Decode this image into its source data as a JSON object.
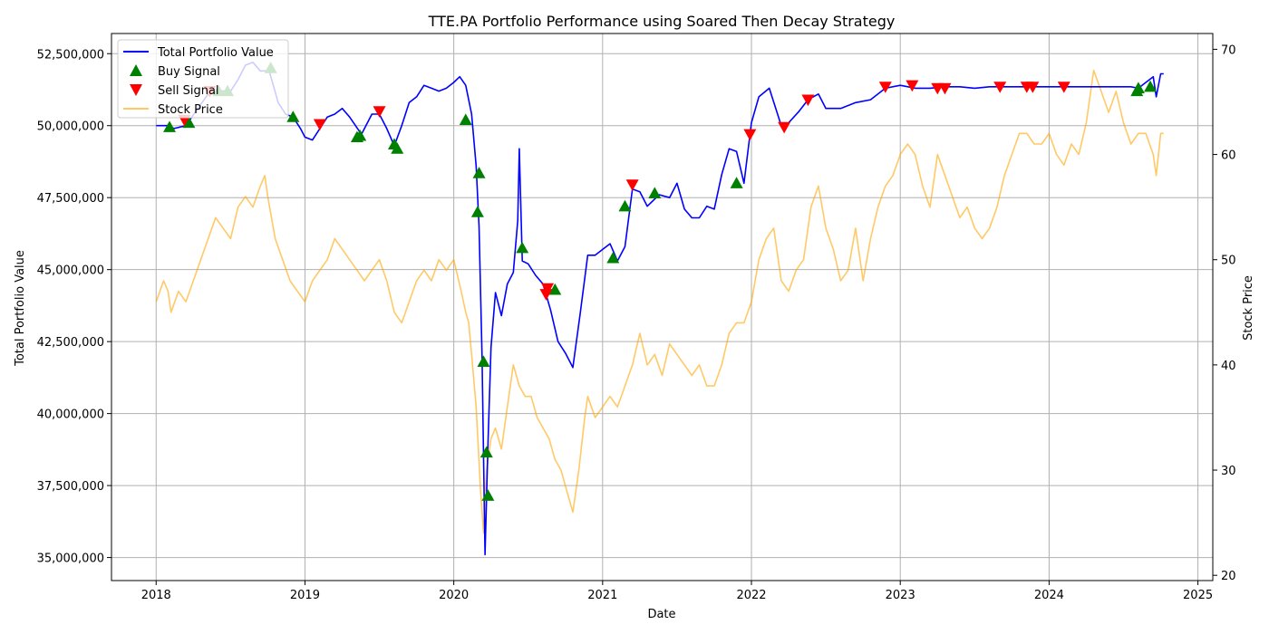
{
  "chart_data": {
    "type": "line",
    "title": "TTE.PA Portfolio Performance using Soared Then Decay Strategy",
    "xlabel": "Date",
    "ylabel": "Total Portfolio Value",
    "y2label": "Stock Price",
    "xlim": [
      2017.7,
      2025.1
    ],
    "ylim": [
      34200000,
      53200000
    ],
    "y2lim": [
      19.5,
      71.5
    ],
    "x_ticks": [
      2018,
      2019,
      2020,
      2021,
      2022,
      2023,
      2024,
      2025
    ],
    "x_tick_labels": [
      "2018",
      "2019",
      "2020",
      "2021",
      "2022",
      "2023",
      "2024",
      "2025"
    ],
    "y_ticks": [
      35000000,
      37500000,
      40000000,
      42500000,
      45000000,
      47500000,
      50000000,
      52500000
    ],
    "y_tick_labels": [
      "35,000,000",
      "37,500,000",
      "40,000,000",
      "42,500,000",
      "45,000,000",
      "47,500,000",
      "50,000,000",
      "52,500,000"
    ],
    "y2_ticks": [
      20,
      30,
      40,
      50,
      60,
      70
    ],
    "y2_tick_labels": [
      "20",
      "30",
      "40",
      "50",
      "60",
      "70"
    ],
    "grid": true,
    "legend_position": "top-left",
    "legend": [
      {
        "label": "Total Portfolio Value",
        "kind": "line",
        "color": "#0000ff"
      },
      {
        "label": "Buy Signal",
        "kind": "triangle-up",
        "color": "#008000"
      },
      {
        "label": "Sell Signal",
        "kind": "triangle-down",
        "color": "#ff0000"
      },
      {
        "label": "Stock Price",
        "kind": "line",
        "color": "#ffa500"
      }
    ],
    "series": [
      {
        "name": "Total Portfolio Value",
        "axis": "left",
        "color": "#0000ff",
        "x": [
          2018.0,
          2018.08,
          2018.12,
          2018.2,
          2018.28,
          2018.35,
          2018.42,
          2018.5,
          2018.55,
          2018.6,
          2018.65,
          2018.7,
          2018.76,
          2018.82,
          2018.87,
          2018.92,
          2018.97,
          2019.0,
          2019.05,
          2019.1,
          2019.15,
          2019.2,
          2019.25,
          2019.3,
          2019.38,
          2019.45,
          2019.5,
          2019.55,
          2019.6,
          2019.65,
          2019.7,
          2019.75,
          2019.8,
          2019.85,
          2019.9,
          2019.95,
          2020.0,
          2020.04,
          2020.08,
          2020.12,
          2020.15,
          2020.17,
          2020.19,
          2020.21,
          2020.23,
          2020.25,
          2020.28,
          2020.32,
          2020.36,
          2020.4,
          2020.43,
          2020.44,
          2020.46,
          2020.5,
          2020.55,
          2020.6,
          2020.65,
          2020.7,
          2020.75,
          2020.8,
          2020.85,
          2020.9,
          2020.95,
          2021.0,
          2021.05,
          2021.1,
          2021.15,
          2021.2,
          2021.25,
          2021.3,
          2021.38,
          2021.45,
          2021.5,
          2021.55,
          2021.6,
          2021.65,
          2021.7,
          2021.75,
          2021.8,
          2021.85,
          2021.9,
          2021.95,
          2022.0,
          2022.05,
          2022.12,
          2022.2,
          2022.25,
          2022.32,
          2022.38,
          2022.45,
          2022.5,
          2022.6,
          2022.7,
          2022.8,
          2022.9,
          2023.0,
          2023.1,
          2023.2,
          2023.3,
          2023.4,
          2023.5,
          2023.6,
          2023.7,
          2023.8,
          2023.9,
          2024.0,
          2024.1,
          2024.2,
          2024.3,
          2024.4,
          2024.5,
          2024.55,
          2024.6,
          2024.65,
          2024.7,
          2024.72,
          2024.75,
          2024.77
        ],
        "values": [
          50000000,
          50000000,
          49900000,
          50000000,
          50600000,
          51100000,
          51200000,
          51200000,
          51600000,
          52100000,
          52200000,
          51900000,
          51900000,
          50800000,
          50400000,
          50300000,
          49900000,
          49600000,
          49500000,
          49900000,
          50300000,
          50400000,
          50600000,
          50300000,
          49700000,
          50400000,
          50400000,
          49900000,
          49300000,
          50000000,
          50800000,
          51000000,
          51400000,
          51300000,
          51200000,
          51300000,
          51500000,
          51700000,
          51400000,
          50400000,
          48600000,
          46500000,
          42000000,
          35100000,
          39000000,
          42300000,
          44200000,
          43400000,
          44500000,
          44900000,
          46700000,
          49200000,
          45300000,
          45200000,
          44800000,
          44500000,
          43600000,
          42500000,
          42100000,
          41600000,
          43500000,
          45500000,
          45500000,
          45700000,
          45900000,
          45300000,
          45800000,
          47800000,
          47700000,
          47200000,
          47600000,
          47500000,
          48000000,
          47100000,
          46800000,
          46800000,
          47200000,
          47100000,
          48300000,
          49200000,
          49100000,
          48000000,
          50100000,
          51000000,
          51300000,
          50000000,
          50100000,
          50500000,
          50900000,
          51100000,
          50600000,
          50600000,
          50800000,
          50900000,
          51300000,
          51400000,
          51300000,
          51300000,
          51350000,
          51350000,
          51300000,
          51350000,
          51350000,
          51350000,
          51350000,
          51350000,
          51350000,
          51350000,
          51350000,
          51350000,
          51350000,
          51350000,
          51300000,
          51500000,
          51700000,
          51000000,
          51800000,
          51800000
        ]
      },
      {
        "name": "Stock Price",
        "axis": "right",
        "color": "#ffa500",
        "x": [
          2018.0,
          2018.05,
          2018.08,
          2018.1,
          2018.15,
          2018.2,
          2018.25,
          2018.3,
          2018.35,
          2018.4,
          2018.45,
          2018.5,
          2018.55,
          2018.6,
          2018.65,
          2018.7,
          2018.73,
          2018.75,
          2018.8,
          2018.85,
          2018.9,
          2018.95,
          2019.0,
          2019.05,
          2019.1,
          2019.15,
          2019.2,
          2019.25,
          2019.3,
          2019.35,
          2019.4,
          2019.45,
          2019.5,
          2019.55,
          2019.6,
          2019.65,
          2019.7,
          2019.75,
          2019.8,
          2019.85,
          2019.9,
          2019.95,
          2020.0,
          2020.05,
          2020.08,
          2020.1,
          2020.12,
          2020.15,
          2020.18,
          2020.2,
          2020.22,
          2020.25,
          2020.28,
          2020.32,
          2020.36,
          2020.4,
          2020.44,
          2020.48,
          2020.52,
          2020.56,
          2020.6,
          2020.64,
          2020.68,
          2020.72,
          2020.76,
          2020.8,
          2020.84,
          2020.88,
          2020.9,
          2020.95,
          2021.0,
          2021.05,
          2021.1,
          2021.15,
          2021.2,
          2021.25,
          2021.3,
          2021.35,
          2021.4,
          2021.45,
          2021.5,
          2021.55,
          2021.6,
          2021.65,
          2021.7,
          2021.75,
          2021.8,
          2021.85,
          2021.9,
          2021.95,
          2022.0,
          2022.05,
          2022.1,
          2022.15,
          2022.2,
          2022.25,
          2022.3,
          2022.35,
          2022.4,
          2022.45,
          2022.5,
          2022.55,
          2022.6,
          2022.65,
          2022.7,
          2022.75,
          2022.8,
          2022.85,
          2022.9,
          2022.95,
          2023.0,
          2023.05,
          2023.1,
          2023.15,
          2023.2,
          2023.25,
          2023.3,
          2023.35,
          2023.4,
          2023.45,
          2023.5,
          2023.55,
          2023.6,
          2023.65,
          2023.7,
          2023.75,
          2023.8,
          2023.85,
          2023.9,
          2023.95,
          2024.0,
          2024.05,
          2024.1,
          2024.15,
          2024.2,
          2024.25,
          2024.3,
          2024.35,
          2024.4,
          2024.45,
          2024.5,
          2024.55,
          2024.6,
          2024.65,
          2024.7,
          2024.72,
          2024.75,
          2024.77
        ],
        "values": [
          46,
          48,
          47,
          45,
          47,
          46,
          48,
          50,
          52,
          54,
          53,
          52,
          55,
          56,
          55,
          57,
          58,
          56,
          52,
          50,
          48,
          47,
          46,
          48,
          49,
          50,
          52,
          51,
          50,
          49,
          48,
          49,
          50,
          48,
          45,
          44,
          46,
          48,
          49,
          48,
          50,
          49,
          50,
          47,
          45,
          44,
          41,
          36,
          28,
          24,
          30,
          33,
          34,
          32,
          36,
          40,
          38,
          37,
          37,
          35,
          34,
          33,
          31,
          30,
          28,
          26,
          30,
          35,
          37,
          35,
          36,
          37,
          36,
          38,
          40,
          43,
          40,
          41,
          39,
          42,
          41,
          40,
          39,
          40,
          38,
          38,
          40,
          43,
          44,
          44,
          46,
          50,
          52,
          53,
          48,
          47,
          49,
          50,
          55,
          57,
          53,
          51,
          48,
          49,
          53,
          48,
          52,
          55,
          57,
          58,
          60,
          61,
          60,
          57,
          55,
          60,
          58,
          56,
          54,
          55,
          53,
          52,
          53,
          55,
          58,
          60,
          62,
          62,
          61,
          61,
          62,
          60,
          59,
          61,
          60,
          63,
          68,
          66,
          64,
          66,
          63,
          61,
          62,
          62,
          60,
          58,
          62,
          62
        ]
      }
    ],
    "buy_signals": {
      "name": "Buy Signal",
      "color": "#008000",
      "x": [
        2018.09,
        2018.22,
        2018.42,
        2018.48,
        2018.77,
        2018.92,
        2019.35,
        2019.37,
        2019.6,
        2019.62,
        2020.08,
        2020.17,
        2020.16,
        2020.2,
        2020.22,
        2020.23,
        2020.46,
        2020.68,
        2021.07,
        2021.15,
        2021.35,
        2021.9,
        2024.59,
        2024.6,
        2024.68
      ],
      "values": [
        49950000,
        50100000,
        51200000,
        51200000,
        52000000,
        50300000,
        49600000,
        49650000,
        49350000,
        49200000,
        50200000,
        48350000,
        47000000,
        41800000,
        38650000,
        37150000,
        45750000,
        44300000,
        45400000,
        47200000,
        47650000,
        48000000,
        51200000,
        51300000,
        51350000
      ]
    },
    "sell_signals": {
      "name": "Sell Signal",
      "color": "#ff0000",
      "x": [
        2018.19,
        2018.36,
        2019.1,
        2019.5,
        2020.62,
        2020.63,
        2021.2,
        2021.99,
        2022.22,
        2022.38,
        2022.9,
        2023.08,
        2023.25,
        2023.3,
        2023.67,
        2023.85,
        2023.89,
        2024.1
      ],
      "values": [
        50200000,
        51200000,
        50050000,
        50500000,
        44150000,
        44350000,
        47950000,
        49700000,
        49950000,
        50900000,
        51350000,
        51400000,
        51300000,
        51300000,
        51350000,
        51350000,
        51350000,
        51350000
      ]
    }
  }
}
